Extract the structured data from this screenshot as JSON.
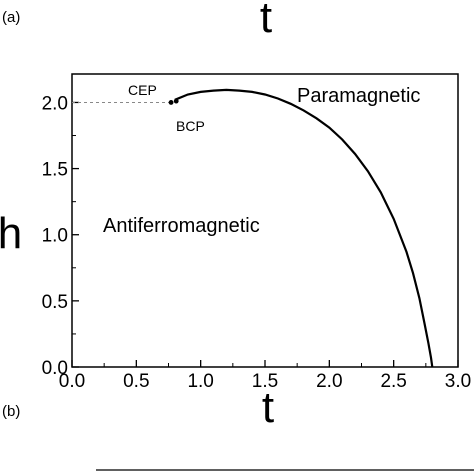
{
  "figure": {
    "panel_a_label": "(a)",
    "panel_b_label": "(b)",
    "top_axis_letter": "t"
  },
  "chart_data": {
    "type": "line",
    "title": "",
    "xlabel": "t",
    "ylabel": "h",
    "xlim": [
      0.0,
      3.0
    ],
    "ylim": [
      0.0,
      2.2
    ],
    "xticks": [
      "0.0",
      "0.5",
      "1.0",
      "1.5",
      "2.0",
      "2.5",
      "3.0"
    ],
    "yticks": [
      "0.0",
      "0.5",
      "1.0",
      "1.5",
      "2.0"
    ],
    "ytick_values": [
      0.0,
      0.5,
      1.0,
      1.5,
      2.0
    ],
    "xtick_values": [
      0.0,
      0.5,
      1.0,
      1.5,
      2.0,
      2.5,
      3.0
    ],
    "grid": false,
    "series": [
      {
        "style": "solid",
        "color": "#000000",
        "x": [
          0.8,
          0.9,
          1.0,
          1.1,
          1.2,
          1.3,
          1.4,
          1.5,
          1.6,
          1.7,
          1.8,
          1.9,
          2.0,
          2.1,
          2.2,
          2.3,
          2.4,
          2.5,
          2.6,
          2.65,
          2.7,
          2.74,
          2.77,
          2.79,
          2.8
        ],
        "y": [
          2.02,
          2.06,
          2.08,
          2.09,
          2.095,
          2.09,
          2.08,
          2.06,
          2.03,
          1.99,
          1.94,
          1.88,
          1.81,
          1.72,
          1.61,
          1.48,
          1.32,
          1.12,
          0.87,
          0.71,
          0.52,
          0.33,
          0.18,
          0.07,
          0.0
        ]
      },
      {
        "style": "dashed",
        "color": "#888888",
        "x": [
          0.0,
          0.77
        ],
        "y": [
          2.0,
          2.0
        ]
      }
    ],
    "points": [
      {
        "label": "CEP",
        "x": 0.77,
        "y": 2.0
      },
      {
        "label": "BCP",
        "x": 0.81,
        "y": 2.01
      }
    ],
    "regions": [
      {
        "label": "Paramagnetic"
      },
      {
        "label": "Antiferromagnetic"
      }
    ]
  }
}
